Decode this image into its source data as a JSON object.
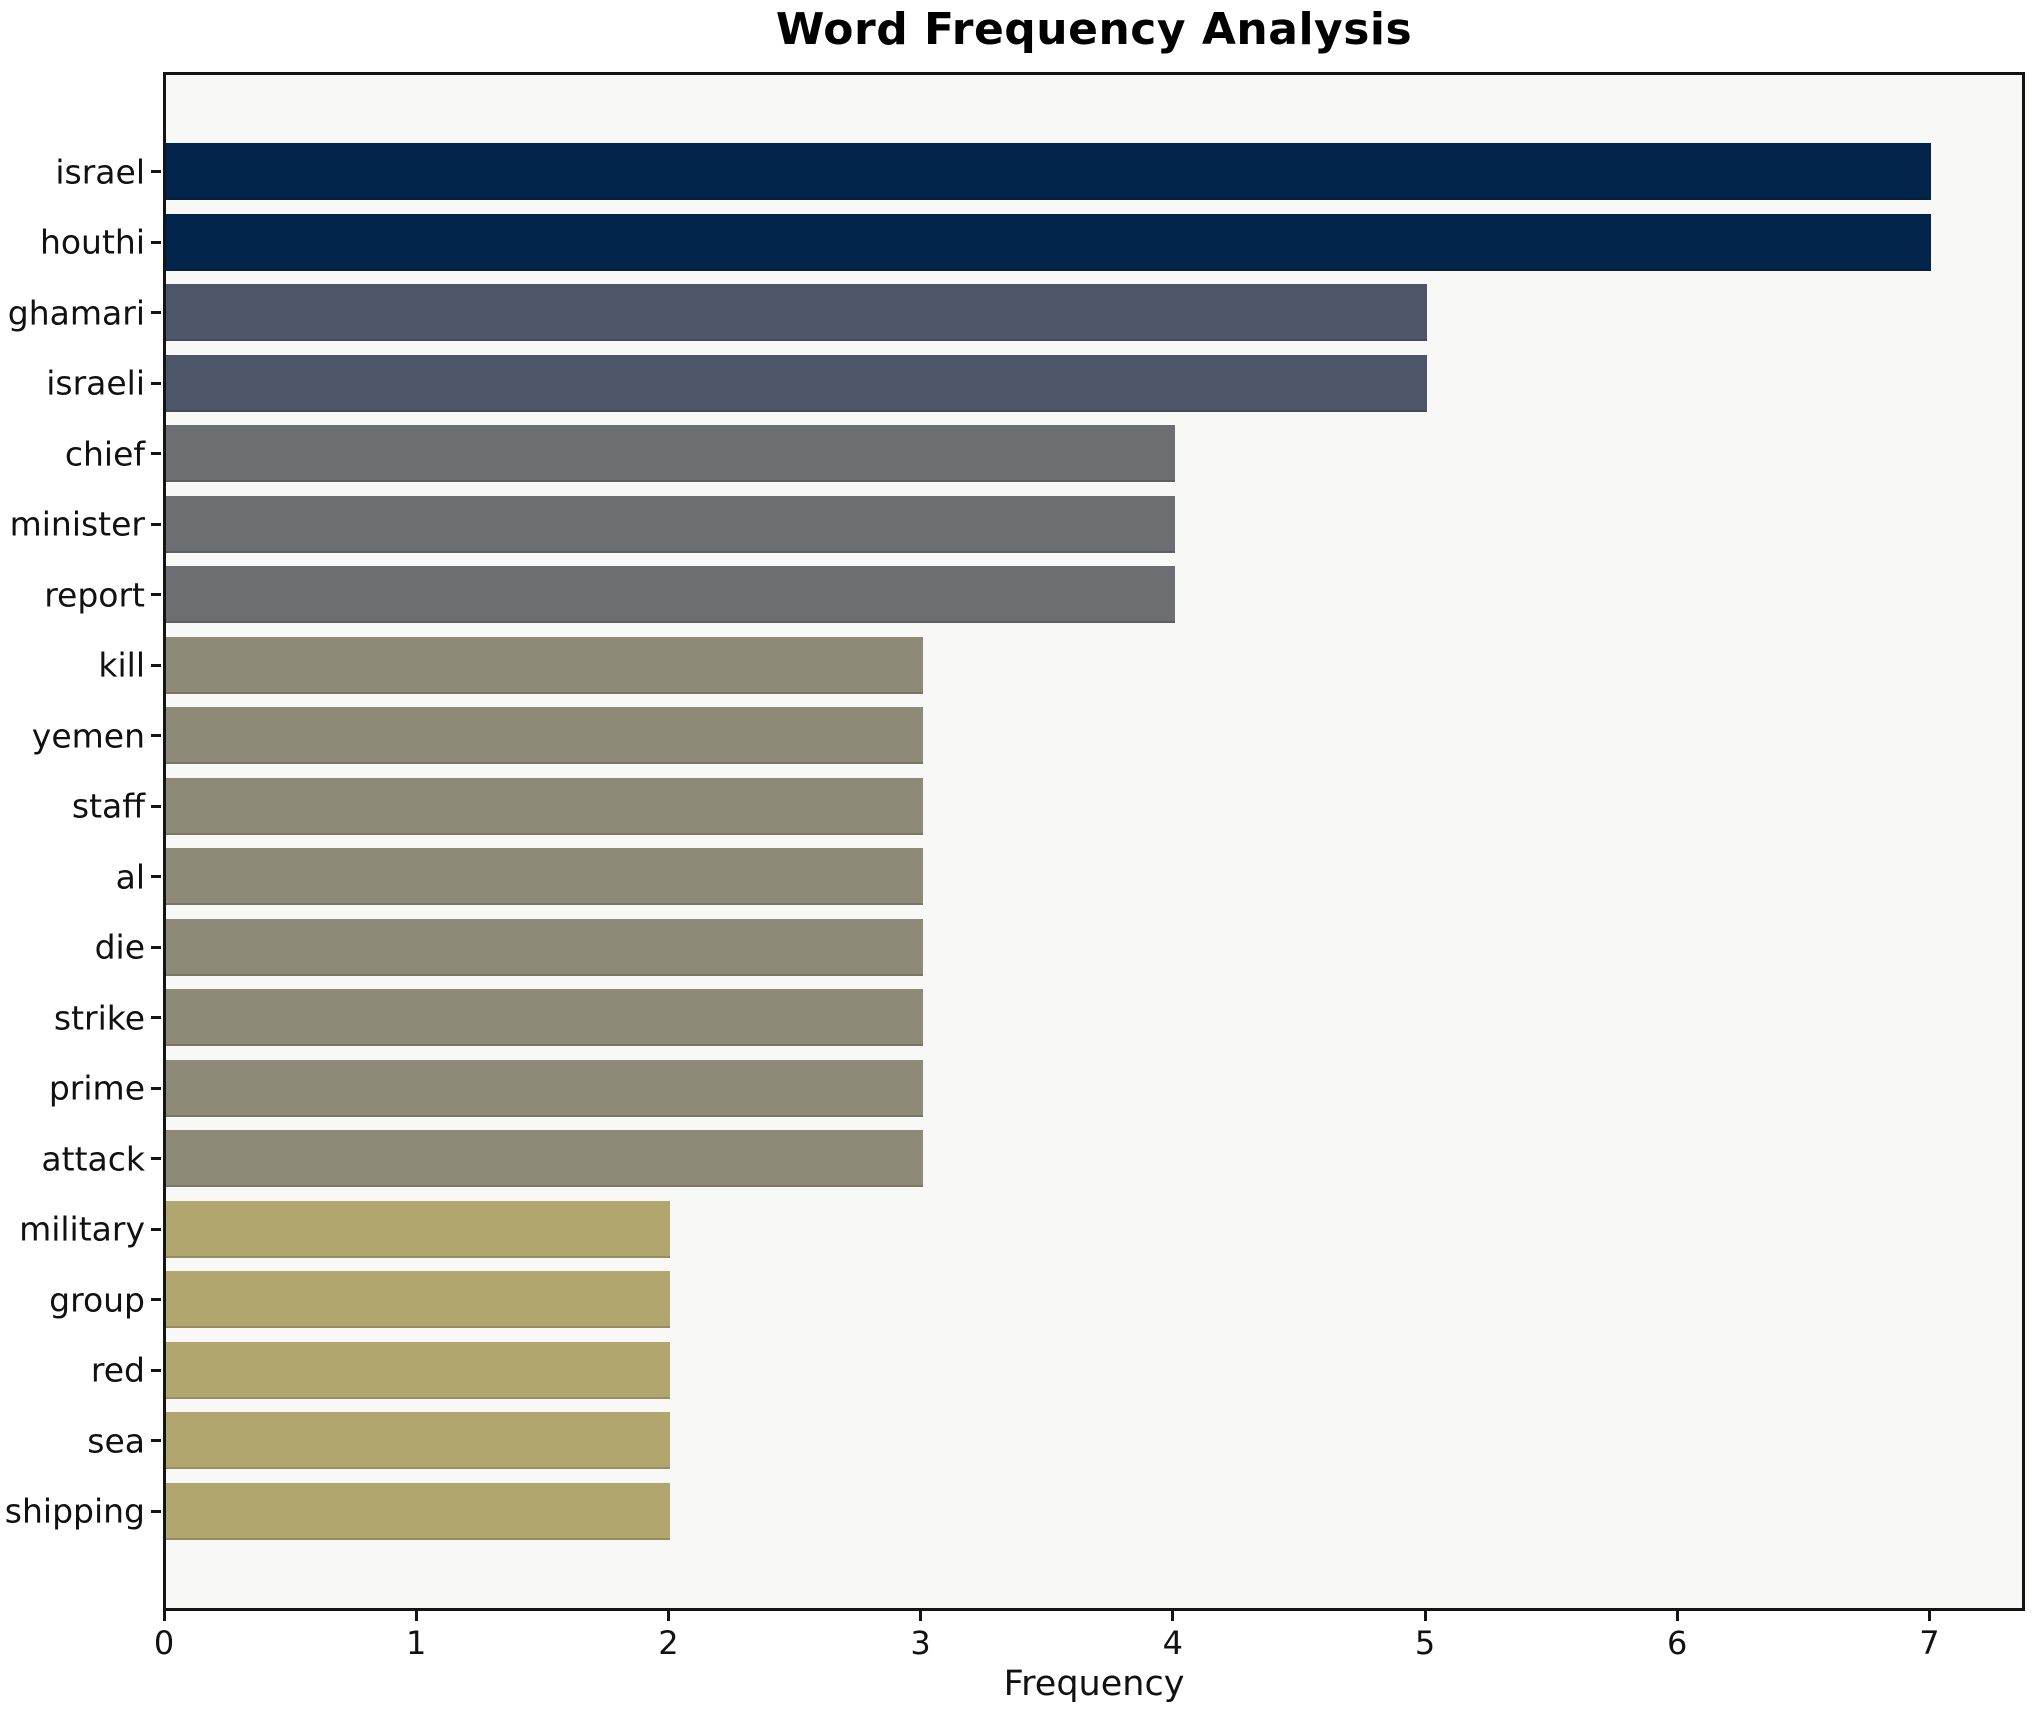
{
  "chart_data": {
    "type": "bar",
    "orientation": "horizontal",
    "title": "Word Frequency Analysis",
    "xlabel": "Frequency",
    "ylabel": "",
    "categories": [
      "israel",
      "houthi",
      "ghamari",
      "israeli",
      "chief",
      "minister",
      "report",
      "kill",
      "yemen",
      "staff",
      "al",
      "die",
      "strike",
      "prime",
      "attack",
      "military",
      "group",
      "red",
      "sea",
      "shipping"
    ],
    "values": [
      7,
      7,
      5,
      5,
      4,
      4,
      4,
      3,
      3,
      3,
      3,
      3,
      3,
      3,
      3,
      2,
      2,
      2,
      2,
      2
    ],
    "bar_colors": [
      "#02234a",
      "#02234a",
      "#4d5568",
      "#4d5568",
      "#6c6e72",
      "#6c6e72",
      "#6c6e72",
      "#8e8a78",
      "#8e8a78",
      "#8e8a78",
      "#8e8a78",
      "#8e8a78",
      "#8e8a78",
      "#8e8a78",
      "#8e8a78",
      "#b1a76e",
      "#b1a76e",
      "#b1a76e",
      "#b1a76e",
      "#b1a76e"
    ],
    "color_by_value": {
      "7": "#02234a",
      "5": "#4d5568",
      "4": "#6c6e72",
      "3": "#8e8a78",
      "2": "#b1a76e"
    },
    "x_ticks": [
      "0",
      "1",
      "2",
      "3",
      "4",
      "5",
      "6",
      "7"
    ],
    "xlim": [
      0,
      7.36
    ],
    "grid": false,
    "legend": null,
    "plot_background": "#f8f8f7",
    "figure_background": "#ffffff",
    "spine_color": "#141414",
    "text_color": "#111111"
  }
}
